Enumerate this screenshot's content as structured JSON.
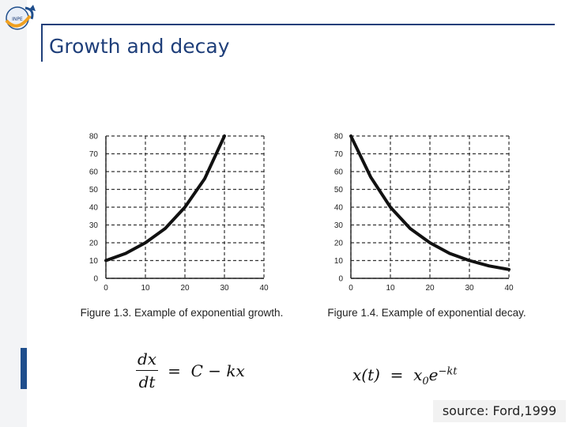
{
  "slide": {
    "title": "Growth and decay",
    "source": "source: Ford,1999"
  },
  "logo": {
    "icon": "globe-arrow-icon",
    "text": "INPE"
  },
  "colors": {
    "accent": "#1f3f7a",
    "curve": "#111111",
    "grid": "#333333"
  },
  "equations": {
    "differential": {
      "numerator": "dx",
      "denominator": "dt",
      "rhs": "=  C − kx"
    },
    "solution": {
      "lhs": "x(t)  =  x",
      "sub": "0",
      "base": "e",
      "exponent": "−kt"
    }
  },
  "chart_data": [
    {
      "type": "line",
      "title": "Figure 1.3. Example of exponential growth.",
      "xlabel": "",
      "ylabel": "",
      "x_ticks": [
        0,
        10,
        20,
        30,
        40
      ],
      "y_ticks": [
        0,
        10,
        20,
        30,
        40,
        50,
        60,
        70,
        80
      ],
      "xlim": [
        0,
        40
      ],
      "ylim": [
        0,
        80
      ],
      "grid": true,
      "series": [
        {
          "x": [
            0,
            5,
            10,
            15,
            20,
            25,
            30
          ],
          "y": [
            10,
            14,
            20,
            28,
            40,
            56,
            80
          ]
        }
      ]
    },
    {
      "type": "line",
      "title": "Figure 1.4. Example of exponential decay.",
      "xlabel": "",
      "ylabel": "",
      "x_ticks": [
        0,
        10,
        20,
        30,
        40
      ],
      "y_ticks": [
        0,
        10,
        20,
        30,
        40,
        50,
        60,
        70,
        80
      ],
      "xlim": [
        0,
        40
      ],
      "ylim": [
        0,
        80
      ],
      "grid": true,
      "series": [
        {
          "x": [
            0,
            5,
            10,
            15,
            20,
            25,
            30,
            35,
            40
          ],
          "y": [
            80,
            57,
            40,
            28,
            20,
            14,
            10,
            7,
            5
          ]
        }
      ]
    }
  ]
}
